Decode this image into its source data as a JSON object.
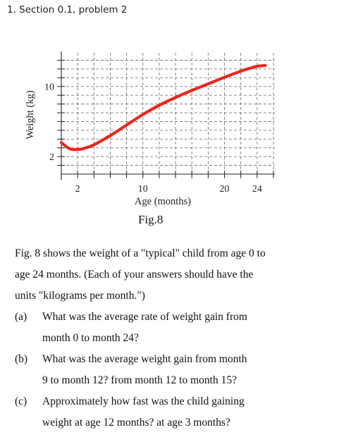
{
  "heading": "1.  Section 0.1, problem 2",
  "figure": {
    "caption": "Fig.8",
    "chart_data": {
      "type": "line",
      "xlabel": "Age (months)",
      "ylabel": "Weight (kg)",
      "x_ticks": [
        2,
        10,
        20,
        24
      ],
      "y_ticks": [
        2,
        10
      ],
      "xlim": [
        0,
        26
      ],
      "ylim": [
        0,
        14
      ],
      "grid": true,
      "series": [
        {
          "color": "#e8271f",
          "x": [
            0,
            1,
            2,
            3,
            4,
            6,
            8,
            10,
            12,
            14,
            16,
            18,
            20,
            22,
            23,
            24,
            25
          ],
          "y": [
            3.6,
            2.9,
            2.8,
            3.0,
            3.35,
            4.4,
            5.6,
            6.8,
            7.85,
            8.75,
            9.55,
            10.3,
            11.05,
            11.75,
            12.05,
            12.3,
            12.4
          ]
        }
      ]
    }
  },
  "paragraph": [
    "Fig. 8 shows the weight of a \"typical\" child from age 0 to",
    "age 24 months.  (Each of your answers should have the",
    "units  \"kilograms per month.\")"
  ],
  "questions": [
    {
      "label": "(a)",
      "lines": [
        "What was the average rate of weight gain from",
        "month 0 to month 24?"
      ]
    },
    {
      "label": "(b)",
      "lines": [
        "What was the average weight gain from month",
        "9 to month 12?  from month 12 to month 15?"
      ]
    },
    {
      "label": "(c)",
      "lines": [
        "Approximately how fast was the child gaining",
        "weight at age 12 months?   at age 3 months?"
      ]
    }
  ]
}
